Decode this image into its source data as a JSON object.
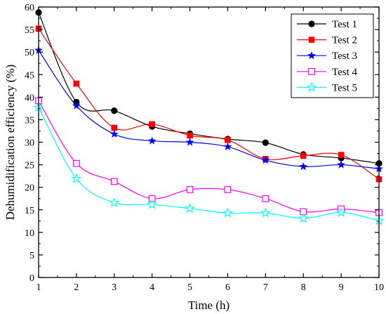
{
  "chart_data": {
    "type": "line",
    "title": "",
    "xlabel": "Time (h)",
    "ylabel": "Dehumidification efficiency (%)",
    "xlim": [
      1,
      10
    ],
    "ylim": [
      0,
      60
    ],
    "x_ticks": [
      "1",
      "2",
      "3",
      "4",
      "5",
      "6",
      "7",
      "8",
      "9",
      "10"
    ],
    "y_ticks": [
      "0",
      "5",
      "10",
      "15",
      "20",
      "25",
      "30",
      "35",
      "40",
      "45",
      "50",
      "55",
      "60"
    ],
    "x": [
      1,
      2,
      3,
      4,
      5,
      6,
      7,
      8,
      9,
      10
    ],
    "grid": false,
    "legend_position": "top-right",
    "series": [
      {
        "name": "Test 1",
        "color": "#000000",
        "marker": "circle",
        "values": [
          58.8,
          38.9,
          37.0,
          33.5,
          31.9,
          30.7,
          29.9,
          27.3,
          26.5,
          25.3
        ]
      },
      {
        "name": "Test 2",
        "color": "#ff0000",
        "marker": "square",
        "values": [
          55.2,
          43.0,
          33.2,
          34.0,
          31.5,
          30.5,
          26.3,
          27.0,
          27.2,
          21.8
        ]
      },
      {
        "name": "Test 3",
        "color": "#0000ff",
        "marker": "star",
        "values": [
          50.4,
          38.1,
          31.8,
          30.3,
          30.0,
          29.0,
          26.0,
          24.6,
          25.0,
          24.1
        ]
      },
      {
        "name": "Test 4",
        "color": "#ff00ff",
        "marker": "open-square",
        "values": [
          39.2,
          25.3,
          21.3,
          17.5,
          19.5,
          19.5,
          17.5,
          14.6,
          15.2,
          14.4
        ]
      },
      {
        "name": "Test 5",
        "color": "#00ffff",
        "marker": "open-star",
        "values": [
          37.7,
          21.9,
          16.6,
          16.2,
          15.3,
          14.3,
          14.3,
          13.1,
          14.4,
          12.6
        ]
      }
    ]
  }
}
